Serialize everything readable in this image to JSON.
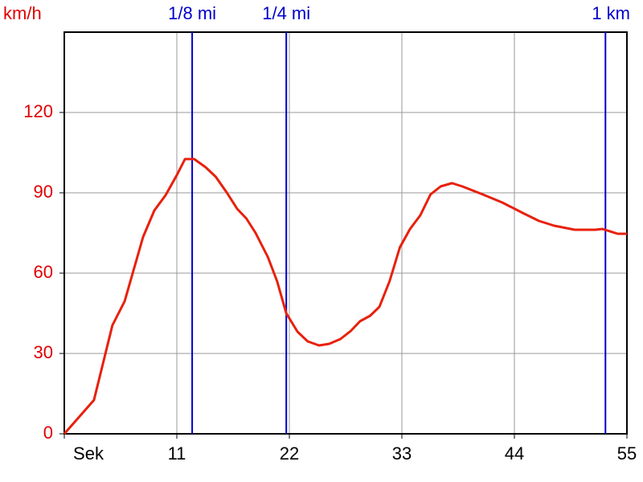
{
  "chart_data": {
    "type": "line",
    "y_label": "km/h",
    "x": [
      0,
      2.9,
      4.7,
      5.9,
      7.7,
      8.8,
      9.9,
      11.0,
      11.8,
      12.7,
      13.8,
      14.8,
      15.9,
      16.9,
      17.8,
      18.7,
      19.9,
      20.8,
      21.7,
      22.8,
      23.8,
      24.9,
      25.9,
      27.0,
      28.0,
      28.9,
      29.9,
      30.8,
      31.8,
      32.8,
      33.8,
      34.8,
      35.8,
      36.8,
      37.9,
      38.9,
      40.9,
      42.8,
      44.8,
      46.4,
      47.9,
      49.9,
      51.9,
      52.6,
      54.1,
      55
    ],
    "series": [
      {
        "color": "#e8200c",
        "values": [
          0,
          12.6,
          40.5,
          49.5,
          73.5,
          83.4,
          89.1,
          96.6,
          102.6,
          102.6,
          99.6,
          96,
          90,
          84,
          80.4,
          75,
          66,
          57,
          45,
          38.1,
          34.5,
          33,
          33.6,
          35.4,
          38.4,
          42,
          44.1,
          47.4,
          57,
          69.6,
          76.5,
          81.6,
          89.4,
          92.4,
          93.6,
          92.4,
          89.4,
          86.4,
          82.5,
          79.5,
          77.7,
          76.2,
          76.2,
          76.5,
          74.7,
          74.7
        ]
      }
    ],
    "xlim": [
      0,
      55
    ],
    "xticks": [
      {
        "value": 0,
        "label": "Sek"
      },
      11,
      22,
      33,
      44,
      55
    ],
    "ylim": [
      0,
      150
    ],
    "yticks": [
      0,
      30,
      60,
      90,
      120
    ],
    "grid": true,
    "markers": [
      {
        "label": "1/8 mi",
        "x": 12.5
      },
      {
        "label": "1/4 mi",
        "x": 21.7
      },
      {
        "label": "1 km",
        "x": 52.9
      }
    ],
    "marker_color": "#0000cc",
    "axis_label_color": "#e00000"
  }
}
